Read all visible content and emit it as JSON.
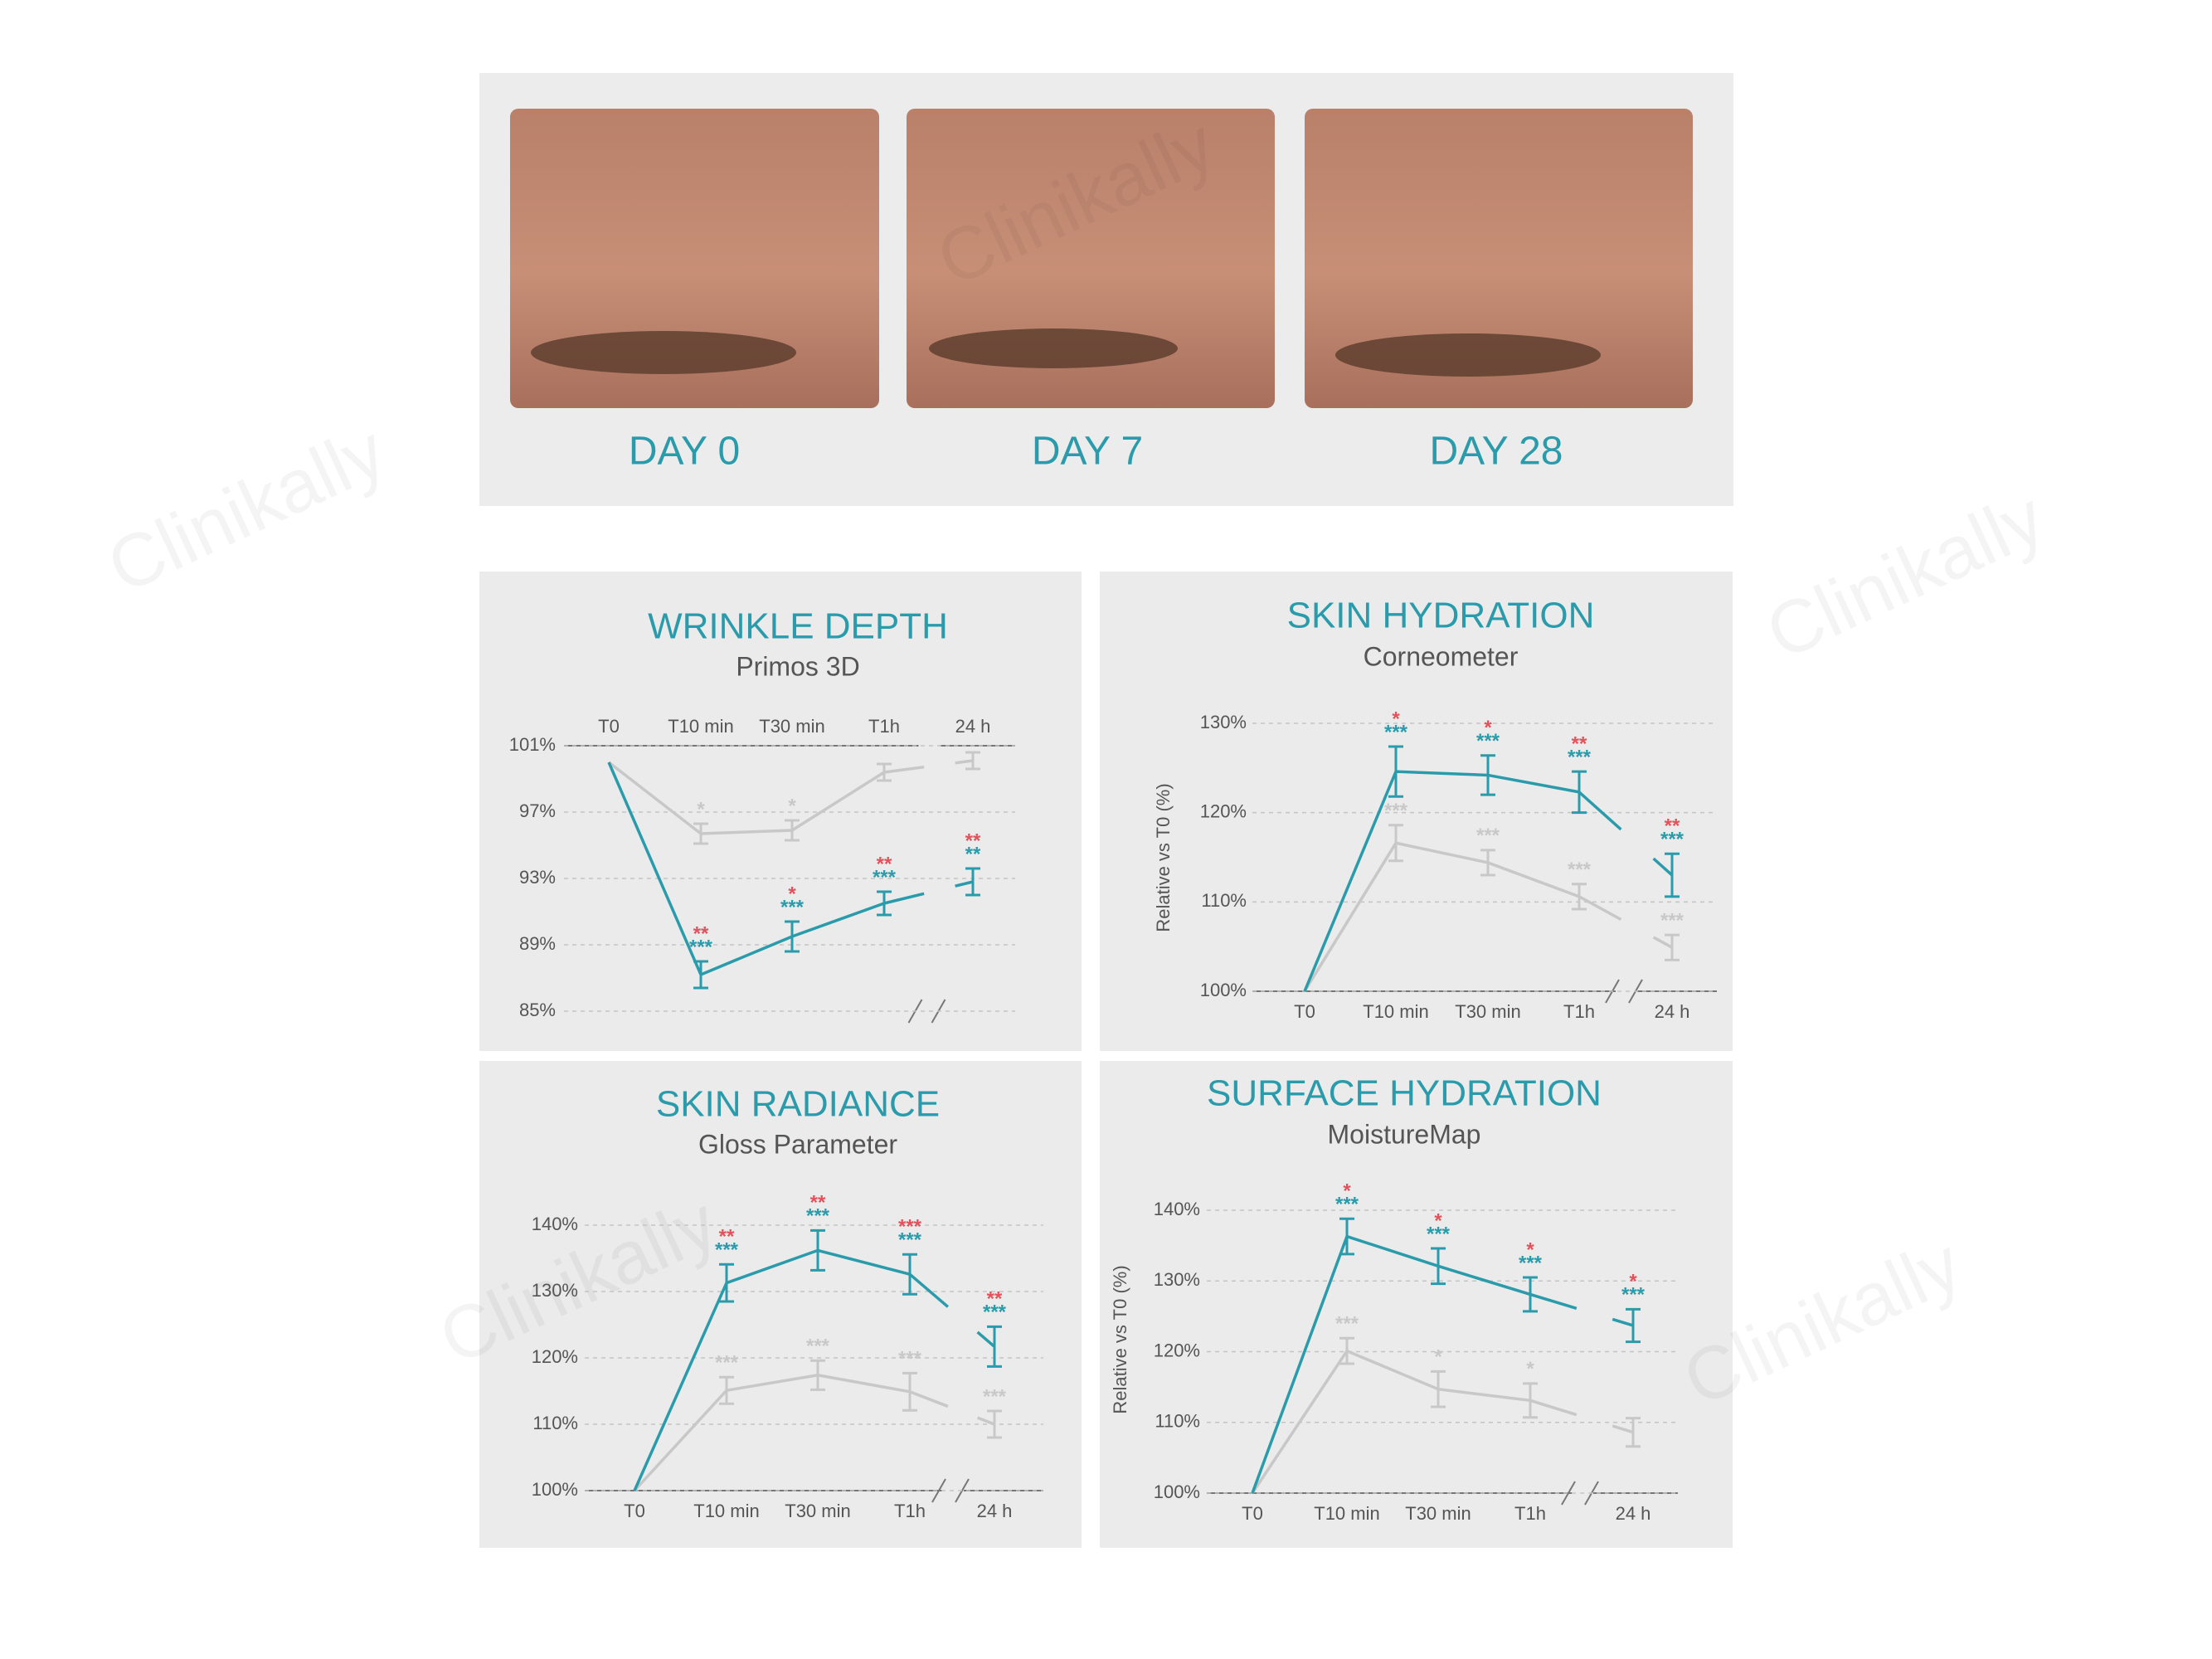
{
  "photos": [
    {
      "label": "DAY 0"
    },
    {
      "label": "DAY 7"
    },
    {
      "label": "DAY 28"
    }
  ],
  "watermark": "Clinikally",
  "chart_data": [
    {
      "type": "line",
      "title": "WRINKLE DEPTH",
      "subtitle": "Primos 3D",
      "x_axis_position": "top",
      "categories": [
        "T0",
        "T10 min",
        "T30 min",
        "T1h",
        "24 h"
      ],
      "ylim": [
        85,
        101
      ],
      "yticks": [
        {
          "value": 85,
          "label": "85%"
        },
        {
          "value": 89,
          "label": "89%"
        },
        {
          "value": 93,
          "label": "93%"
        },
        {
          "value": 97,
          "label": "97%"
        },
        {
          "value": 101,
          "label": "101%"
        }
      ],
      "grid": true,
      "secondary_significance_color": "#e2525c",
      "series": [
        {
          "color": "#c8c8c8",
          "values": [
            100,
            95.7,
            95.9,
            99.4,
            100.1
          ],
          "errors": [
            null,
            0.6,
            0.6,
            0.5,
            0.5
          ],
          "significance": [
            null,
            "*",
            "*",
            null,
            null
          ]
        },
        {
          "color": "#2a9bab",
          "values": [
            100,
            87.2,
            89.5,
            91.5,
            92.8
          ],
          "errors": [
            null,
            0.8,
            0.9,
            0.7,
            0.8
          ],
          "significance": [
            null,
            "***",
            "***",
            "***",
            "**"
          ],
          "secondary_significance": [
            null,
            "**",
            "*",
            "**",
            "**"
          ]
        }
      ]
    },
    {
      "type": "line",
      "title": "SKIN HYDRATION",
      "subtitle": "Corneometer",
      "y_label": "Relative vs T0 (%)",
      "x_axis_position": "bottom",
      "categories": [
        "T0",
        "T10 min",
        "T30 min",
        "T1h",
        "24 h"
      ],
      "ylim": [
        100,
        130
      ],
      "yticks": [
        {
          "value": 100,
          "label": "100%"
        },
        {
          "value": 110,
          "label": "110%"
        },
        {
          "value": 120,
          "label": "120%"
        },
        {
          "value": 130,
          "label": "130%"
        }
      ],
      "grid": true,
      "secondary_significance_color": "#e2525c",
      "series": [
        {
          "color": "#c8c8c8",
          "values": [
            100,
            116.6,
            114.4,
            110.6,
            104.9
          ],
          "errors": [
            null,
            2.0,
            1.4,
            1.4,
            1.4
          ],
          "significance": [
            null,
            "***",
            "***",
            "***",
            "***"
          ]
        },
        {
          "color": "#2a9bab",
          "values": [
            100,
            124.6,
            124.2,
            122.3,
            113.0
          ],
          "errors": [
            null,
            2.8,
            2.2,
            2.3,
            2.4
          ],
          "significance": [
            null,
            "***",
            "***",
            "***",
            "***"
          ],
          "secondary_significance": [
            null,
            "*",
            "*",
            "**",
            "**"
          ]
        }
      ]
    },
    {
      "type": "line",
      "title": "SKIN RADIANCE",
      "subtitle": "Gloss Parameter",
      "x_axis_position": "bottom",
      "categories": [
        "T0",
        "T10 min",
        "T30 min",
        "T1h",
        "24 h"
      ],
      "ylim": [
        100,
        140
      ],
      "yticks": [
        {
          "value": 100,
          "label": "100%"
        },
        {
          "value": 110,
          "label": "110%"
        },
        {
          "value": 120,
          "label": "120%"
        },
        {
          "value": 130,
          "label": "130%"
        },
        {
          "value": 140,
          "label": "140%"
        }
      ],
      "grid": true,
      "secondary_significance_color": "#e2525c",
      "series": [
        {
          "color": "#c8c8c8",
          "values": [
            100,
            115.1,
            117.4,
            114.9,
            110.0
          ],
          "errors": [
            null,
            2.0,
            2.2,
            2.8,
            2.0
          ],
          "significance": [
            null,
            "***",
            "***",
            "***",
            "***"
          ]
        },
        {
          "color": "#2a9bab",
          "values": [
            100,
            131.3,
            136.2,
            132.6,
            121.7
          ],
          "errors": [
            null,
            2.8,
            3.0,
            3.0,
            3.0
          ],
          "significance": [
            null,
            "***",
            "***",
            "***",
            "***"
          ],
          "secondary_significance": [
            null,
            "**",
            "**",
            "***",
            "**"
          ]
        }
      ]
    },
    {
      "type": "line",
      "title": "SURFACE HYDRATION",
      "subtitle": "MoistureMap",
      "y_label": "Relative vs T0 (%)",
      "x_axis_position": "bottom",
      "categories": [
        "T0",
        "T10 min",
        "T30 min",
        "T1h",
        "24 h"
      ],
      "ylim": [
        100,
        140
      ],
      "yticks": [
        {
          "value": 100,
          "label": "100%"
        },
        {
          "value": 110,
          "label": "110%"
        },
        {
          "value": 120,
          "label": "120%"
        },
        {
          "value": 130,
          "label": "130%"
        },
        {
          "value": 140,
          "label": "140%"
        }
      ],
      "grid": true,
      "secondary_significance_color": "#e2525c",
      "series": [
        {
          "color": "#c8c8c8",
          "values": [
            100,
            120.1,
            114.7,
            113.1,
            108.6
          ],
          "errors": [
            null,
            1.8,
            2.5,
            2.4,
            2.0
          ],
          "significance": [
            null,
            "***",
            "*",
            "*",
            null
          ]
        },
        {
          "color": "#2a9bab",
          "values": [
            100,
            136.3,
            132.1,
            128.1,
            123.7
          ],
          "errors": [
            null,
            2.5,
            2.5,
            2.4,
            2.3
          ],
          "significance": [
            null,
            "***",
            "***",
            "***",
            "***"
          ],
          "secondary_significance": [
            null,
            "*",
            "*",
            "*",
            "*"
          ]
        }
      ]
    }
  ]
}
